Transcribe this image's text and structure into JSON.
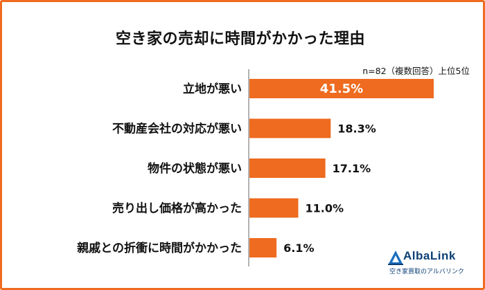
{
  "chart_data": {
    "type": "bar",
    "orientation": "horizontal",
    "title": "空き家の売却に時間がかかった理由",
    "note": "n=82（複数回答）上位5位",
    "categories": [
      "立地が悪い",
      "不動産会社の対応が悪い",
      "物件の状態が悪い",
      "売り出し価格が高かった",
      "親戚との折衝に時間がかかった"
    ],
    "values": [
      41.5,
      18.3,
      17.1,
      11.0,
      6.1
    ],
    "value_labels": [
      "41.5%",
      "18.3%",
      "17.1%",
      "11.0%",
      "6.1%"
    ],
    "bar_color": "#ee6b1f",
    "xlim": [
      0,
      45
    ],
    "grid": false,
    "legend": "none"
  },
  "logo": {
    "name": "AlbaLink",
    "tagline": "空き家買取のアルバリンク",
    "color": "#0c3f75"
  },
  "frame_color": "#ee6b1f"
}
